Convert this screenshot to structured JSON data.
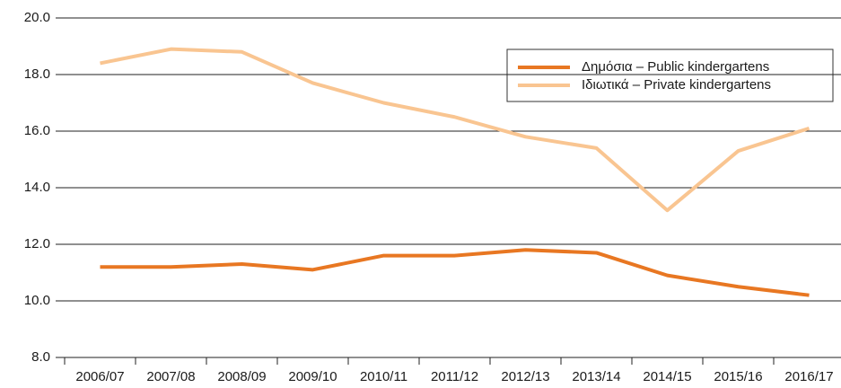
{
  "chart_data": {
    "type": "line",
    "categories": [
      "2006/07",
      "2007/08",
      "2008/09",
      "2009/10",
      "2010/11",
      "2011/12",
      "2012/13",
      "2013/14",
      "2014/15",
      "2015/16",
      "2016/17"
    ],
    "series": [
      {
        "name": "Δημόσια – Public kindergartens",
        "color": "#e87722",
        "values": [
          11.2,
          11.2,
          11.3,
          11.1,
          11.6,
          11.6,
          11.8,
          11.7,
          10.9,
          10.5,
          10.2
        ]
      },
      {
        "name": "Ιδιωτικά – Private kindergartens",
        "color": "#f9c591",
        "values": [
          18.4,
          18.9,
          18.8,
          17.7,
          17.0,
          16.5,
          15.8,
          15.4,
          13.2,
          15.3,
          16.1
        ]
      }
    ],
    "ylim": [
      8,
      20
    ],
    "yticks": [
      {
        "value": 8,
        "label": "8.0"
      },
      {
        "value": 10,
        "label": "10.0"
      },
      {
        "value": 12,
        "label": "12.0"
      },
      {
        "value": 14,
        "label": "14.0"
      },
      {
        "value": 16,
        "label": "16.0"
      },
      {
        "value": 18,
        "label": "18.0"
      },
      {
        "value": 20,
        "label": "20.0"
      }
    ],
    "grid": true,
    "legend": "upper right"
  }
}
